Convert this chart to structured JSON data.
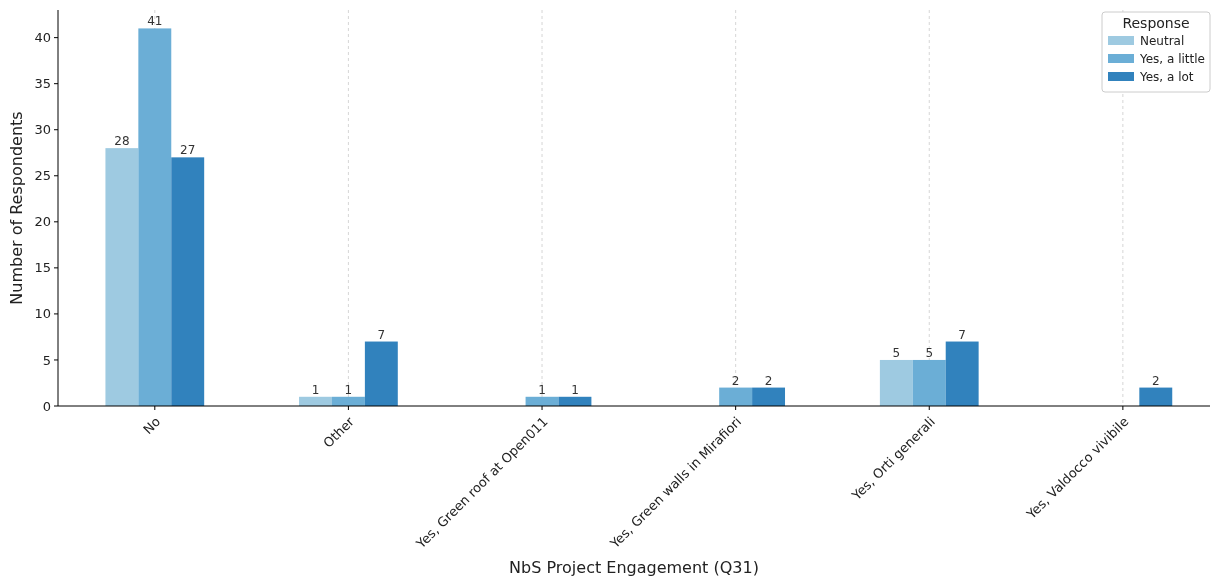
{
  "chart_data": {
    "type": "bar",
    "xlabel": "NbS Project Engagement (Q31)",
    "ylabel": "Number of Respondents",
    "legend_title": "Response",
    "categories": [
      "No",
      "Other",
      "Yes, Green roof at Open011",
      "Yes, Green walls in Mirafiori",
      "Yes, Orti generali",
      "Yes, Valdocco vivibile"
    ],
    "series": [
      {
        "name": "Neutral",
        "color": "#9ecae1",
        "values": [
          28,
          1,
          null,
          null,
          5,
          null
        ]
      },
      {
        "name": "Yes, a little",
        "color": "#6baed6",
        "values": [
          41,
          1,
          1,
          2,
          5,
          null
        ]
      },
      {
        "name": "Yes, a lot",
        "color": "#3182bd",
        "values": [
          27,
          7,
          1,
          2,
          7,
          2
        ]
      }
    ],
    "ylim": [
      0,
      43
    ],
    "yticks": [
      0,
      5,
      10,
      15,
      20,
      25,
      30,
      35,
      40
    ],
    "grid": "x",
    "legend": "top right",
    "data_labels": true
  }
}
